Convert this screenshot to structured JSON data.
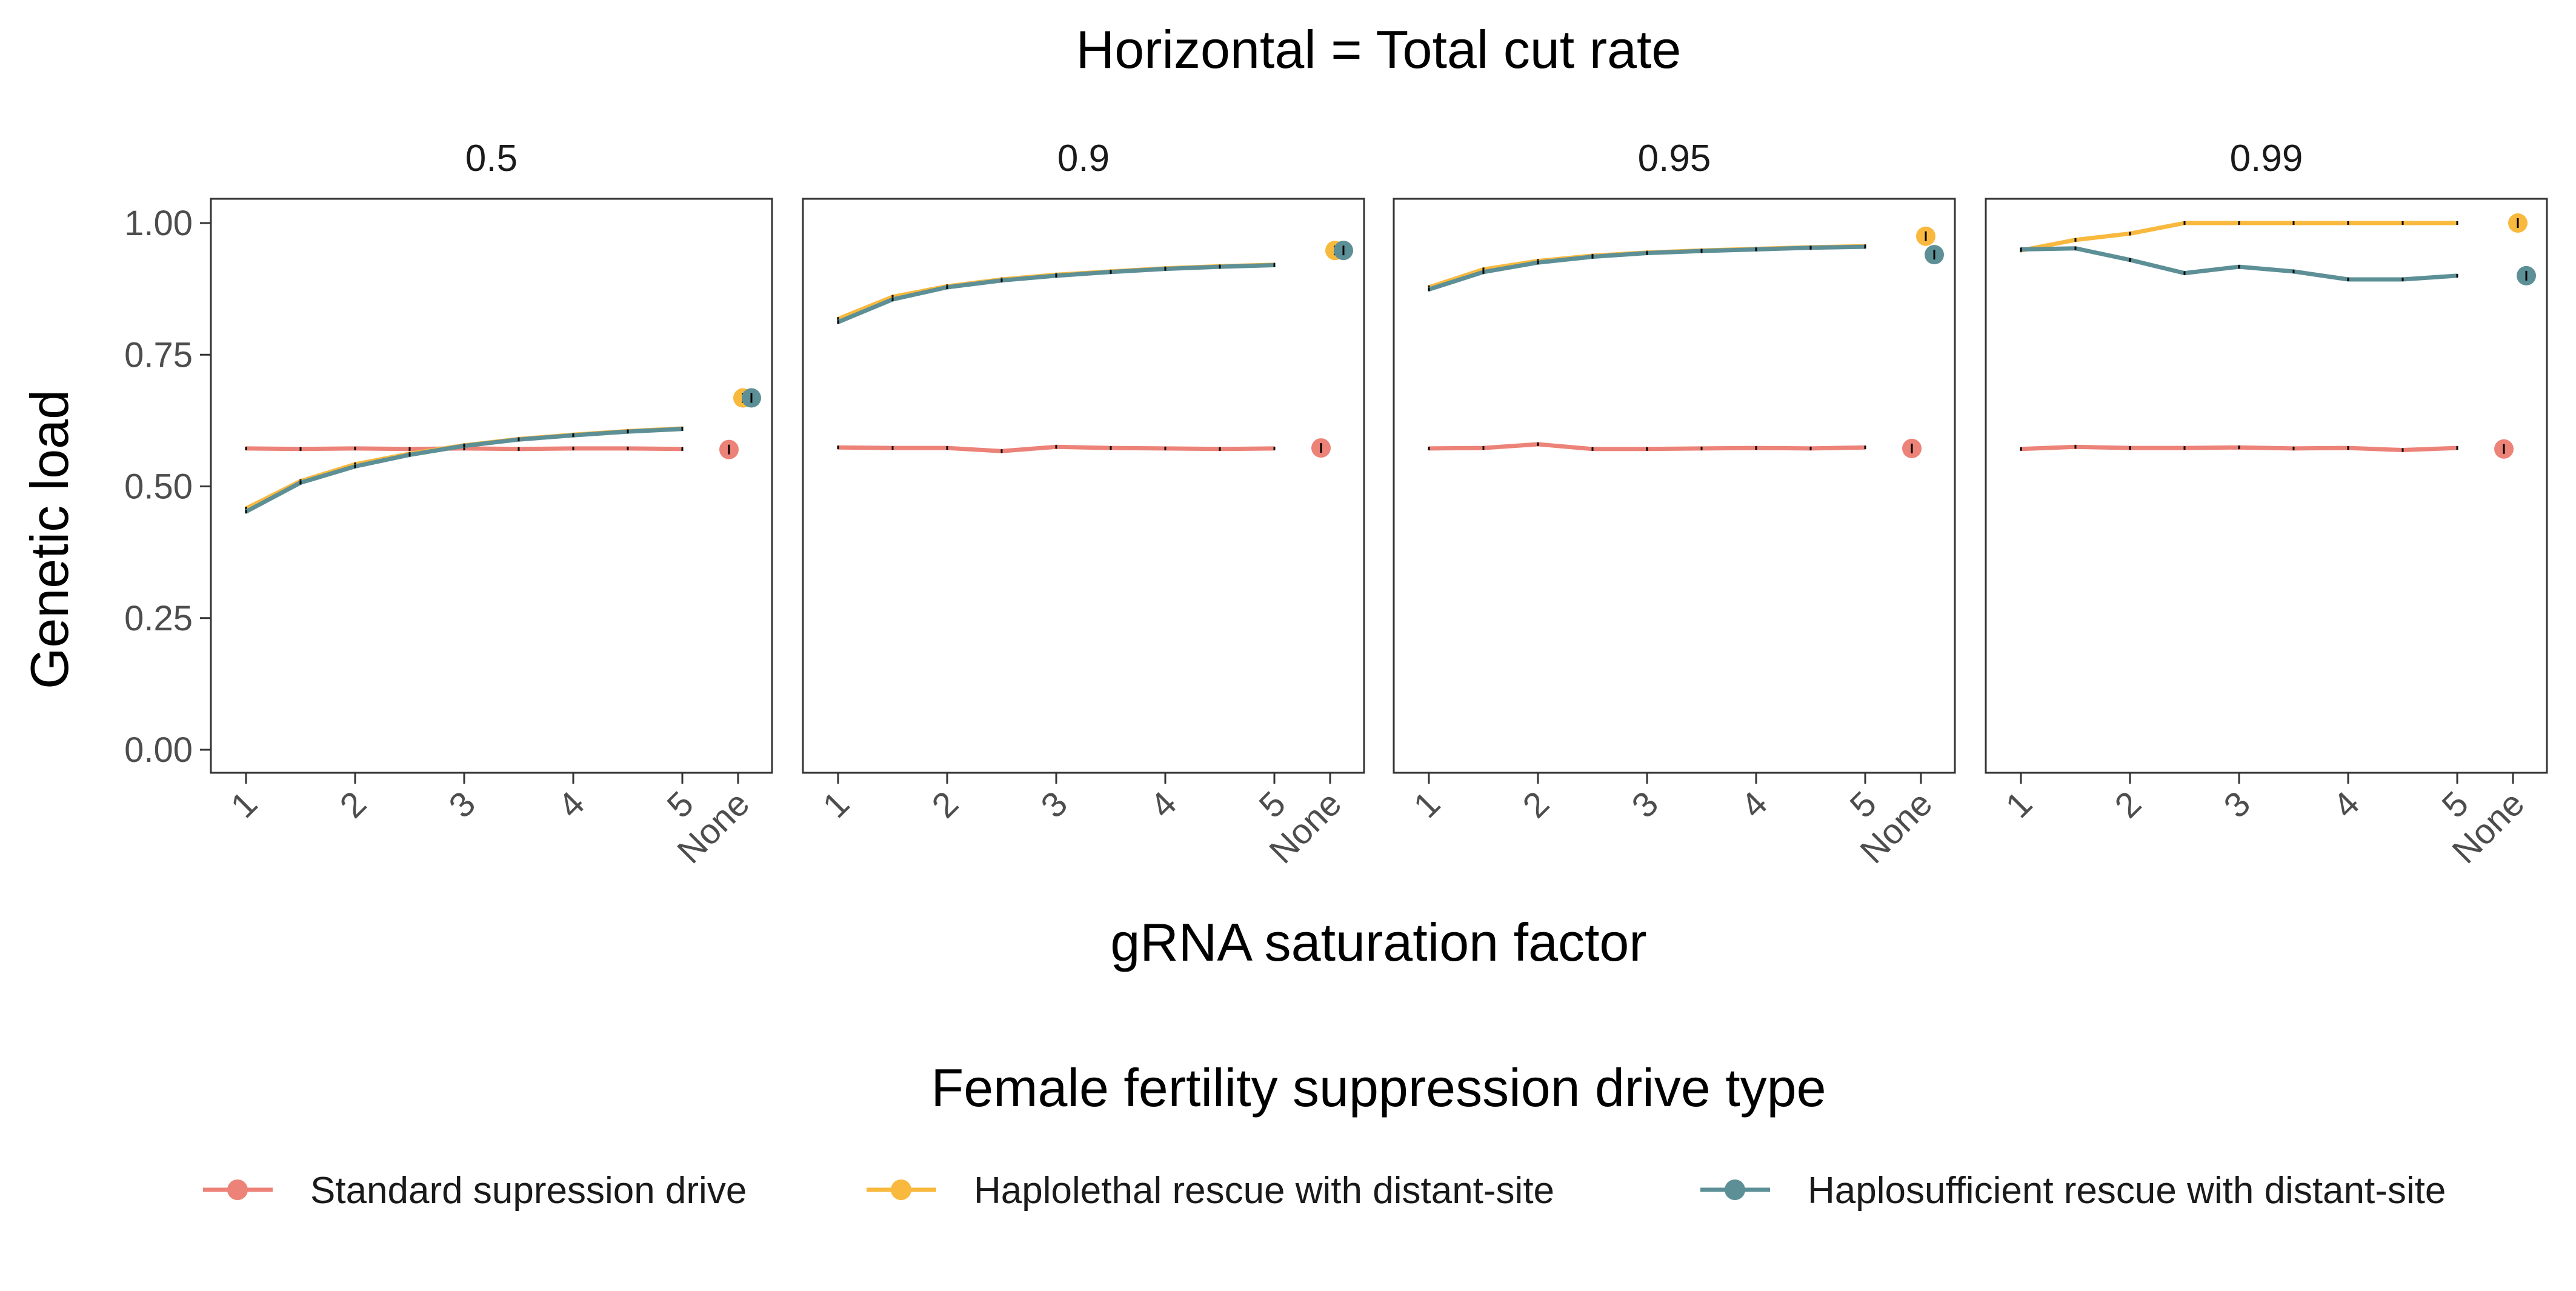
{
  "chart_data": {
    "type": "line",
    "title": "Horizontal = Total cut rate",
    "xlabel": "gRNA saturation factor",
    "ylabel": "Genetic load",
    "ylim": [
      0,
      1.05
    ],
    "yticks": [
      0.0,
      0.25,
      0.5,
      0.75,
      1.0
    ],
    "ytick_labels": [
      "0.00",
      "0.25",
      "0.50",
      "0.75",
      "1.00"
    ],
    "xticks": [
      "1",
      "2",
      "3",
      "4",
      "5",
      "None"
    ],
    "x": [
      1,
      1.5,
      2,
      2.5,
      3,
      3.5,
      4,
      4.5,
      5
    ],
    "grid": false,
    "legend": {
      "title": "Female fertility suppression drive type",
      "placement": "bottom"
    },
    "series_info": [
      {
        "name": "Standard supression drive",
        "color": "#ec8278"
      },
      {
        "name": "Haplolethal rescue with distant-site",
        "color": "#f8b93e"
      },
      {
        "name": "Haplosufficient rescue with distant-site",
        "color": "#5d8f96"
      }
    ],
    "panels": [
      {
        "label": "0.5",
        "series": [
          {
            "name": "Standard supression drive",
            "values": [
              0.572,
              0.571,
              0.572,
              0.571,
              0.572,
              0.571,
              0.572,
              0.572,
              0.571
            ],
            "none": 0.57
          },
          {
            "name": "Haplolethal rescue with distant-site",
            "values": [
              0.458,
              0.51,
              0.542,
              0.562,
              0.578,
              0.59,
              0.598,
              0.605,
              0.61
            ],
            "none": 0.668
          },
          {
            "name": "Haplosufficient rescue with distant-site",
            "values": [
              0.452,
              0.507,
              0.538,
              0.56,
              0.577,
              0.589,
              0.597,
              0.604,
              0.609
            ],
            "none": 0.668
          }
        ]
      },
      {
        "label": "0.9",
        "series": [
          {
            "name": "Standard supression drive",
            "values": [
              0.574,
              0.573,
              0.573,
              0.567,
              0.575,
              0.573,
              0.572,
              0.571,
              0.572
            ],
            "none": 0.573
          },
          {
            "name": "Haplolethal rescue with distant-site",
            "values": [
              0.818,
              0.86,
              0.88,
              0.893,
              0.902,
              0.908,
              0.914,
              0.918,
              0.921
            ],
            "none": 0.948
          },
          {
            "name": "Haplosufficient rescue with distant-site",
            "values": [
              0.812,
              0.855,
              0.878,
              0.891,
              0.9,
              0.907,
              0.913,
              0.917,
              0.92
            ],
            "none": 0.948
          }
        ]
      },
      {
        "label": "0.95",
        "series": [
          {
            "name": "Standard supression drive",
            "values": [
              0.572,
              0.573,
              0.58,
              0.571,
              0.571,
              0.572,
              0.573,
              0.572,
              0.574
            ],
            "none": 0.572
          },
          {
            "name": "Haplolethal rescue with distant-site",
            "values": [
              0.878,
              0.912,
              0.928,
              0.938,
              0.944,
              0.948,
              0.951,
              0.954,
              0.956
            ],
            "none": 0.975
          },
          {
            "name": "Haplosufficient rescue with distant-site",
            "values": [
              0.874,
              0.907,
              0.925,
              0.936,
              0.943,
              0.947,
              0.95,
              0.953,
              0.955
            ],
            "none": 0.94
          }
        ]
      },
      {
        "label": "0.99",
        "series": [
          {
            "name": "Standard supression drive",
            "values": [
              0.571,
              0.575,
              0.573,
              0.573,
              0.574,
              0.572,
              0.573,
              0.569,
              0.573
            ],
            "none": 0.571
          },
          {
            "name": "Haplolethal rescue with distant-site",
            "values": [
              0.948,
              0.968,
              0.98,
              1.0,
              1.0,
              1.0,
              1.0,
              1.0,
              1.0
            ],
            "none": 1.0
          },
          {
            "name": "Haplosufficient rescue with distant-site",
            "values": [
              0.95,
              0.952,
              0.93,
              0.905,
              0.917,
              0.908,
              0.893,
              0.893,
              0.9
            ],
            "none": 0.9
          }
        ]
      }
    ]
  }
}
